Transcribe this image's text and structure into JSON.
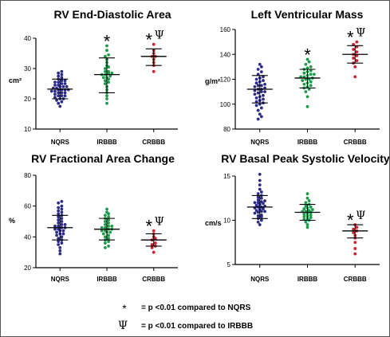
{
  "colors": {
    "NQRS": "#2b2c86",
    "IRBBB": "#1e9a4a",
    "CRBBB": "#d21f2b"
  },
  "chart_data": [
    {
      "type": "scatter",
      "title": "RV End-Diastolic Area",
      "ylabel": "cm²",
      "ylim": [
        10,
        40
      ],
      "yticks": [
        10,
        20,
        30,
        40
      ],
      "categories": [
        "NQRS",
        "IRBBB",
        "CRBBB"
      ],
      "series": [
        {
          "category": "NQRS",
          "mean": 23.2,
          "sd_low": 20.0,
          "sd_high": 26.5,
          "values": [
            17.5,
            18.5,
            19,
            19.5,
            20,
            20,
            20.5,
            21,
            21,
            21,
            21.5,
            22,
            22,
            22,
            22.5,
            22.5,
            23,
            23,
            23,
            23,
            23.5,
            23.5,
            24,
            24,
            24,
            24.5,
            24.5,
            25,
            25,
            25.5,
            25.5,
            26,
            26,
            26.5,
            27,
            27.5,
            28,
            28.5,
            29
          ]
        },
        {
          "category": "IRBBB",
          "mean": 28.0,
          "sd_low": 22.0,
          "sd_high": 33.5,
          "values": [
            18.5,
            20,
            21,
            22,
            23,
            24,
            25,
            25.5,
            26,
            26.5,
            27,
            27,
            27.5,
            28,
            28,
            28.5,
            28.5,
            29,
            29,
            30,
            30.5,
            31,
            32,
            33,
            34,
            34.5,
            36,
            37.5
          ]
        },
        {
          "category": "CRBBB",
          "mean": 34.0,
          "sd_low": 31.0,
          "sd_high": 36.5,
          "values": [
            29,
            31,
            32,
            33,
            34,
            34,
            35,
            36,
            38
          ]
        }
      ],
      "annotations": [
        {
          "category": "IRBBB",
          "symbols": "*"
        },
        {
          "category": "CRBBB",
          "symbols": "*Ψ"
        }
      ]
    },
    {
      "type": "scatter",
      "title": "Left Ventricular Mass",
      "ylabel": "g/m²",
      "ylim": [
        80,
        160
      ],
      "yticks": [
        80,
        100,
        120,
        140,
        160
      ],
      "categories": [
        "NQRS",
        "IRBBB",
        "CRBBB"
      ],
      "series": [
        {
          "category": "NQRS",
          "mean": 112,
          "sd_low": 101,
          "sd_high": 123,
          "values": [
            88,
            90,
            92,
            95,
            97,
            99,
            100,
            101,
            102,
            103,
            104,
            105,
            106,
            107,
            108,
            109,
            110,
            110,
            111,
            112,
            112,
            113,
            114,
            115,
            115,
            116,
            117,
            118,
            119,
            120,
            121,
            122,
            124,
            126,
            128,
            130,
            132
          ]
        },
        {
          "category": "IRBBB",
          "mean": 121,
          "sd_low": 113,
          "sd_high": 128,
          "values": [
            98,
            106,
            110,
            112,
            113,
            114,
            115,
            116,
            117,
            118,
            119,
            120,
            120,
            121,
            122,
            122,
            123,
            124,
            124,
            125,
            126,
            127,
            128,
            129,
            130,
            132,
            134,
            136
          ]
        },
        {
          "category": "CRBBB",
          "mean": 140,
          "sd_low": 133,
          "sd_high": 147,
          "values": [
            122,
            130,
            133,
            135,
            137,
            139,
            140,
            142,
            144,
            146,
            148,
            150
          ]
        }
      ],
      "annotations": [
        {
          "category": "IRBBB",
          "symbols": "*"
        },
        {
          "category": "CRBBB",
          "symbols": "*Ψ"
        }
      ]
    },
    {
      "type": "scatter",
      "title": "RV Fractional Area Change",
      "ylabel": "%",
      "ylim": [
        20,
        80
      ],
      "yticks": [
        20,
        40,
        60,
        80
      ],
      "categories": [
        "NQRS",
        "IRBBB",
        "CRBBB"
      ],
      "series": [
        {
          "category": "NQRS",
          "mean": 46,
          "sd_low": 38,
          "sd_high": 54,
          "values": [
            29,
            31,
            33,
            35,
            36,
            37,
            38,
            39,
            40,
            41,
            42,
            42,
            43,
            44,
            44,
            45,
            45,
            46,
            46,
            47,
            47,
            48,
            48,
            49,
            50,
            51,
            52,
            53,
            54,
            55,
            56,
            57,
            58,
            59,
            60,
            62,
            63
          ]
        },
        {
          "category": "IRBBB",
          "mean": 45,
          "sd_low": 38,
          "sd_high": 52,
          "values": [
            33,
            34,
            36,
            37,
            38,
            39,
            40,
            41,
            42,
            43,
            43,
            44,
            44,
            45,
            45,
            46,
            46,
            47,
            47,
            48,
            49,
            50,
            51,
            52,
            53,
            54,
            55,
            56,
            58
          ]
        },
        {
          "category": "CRBBB",
          "mean": 38,
          "sd_low": 34,
          "sd_high": 42,
          "values": [
            30,
            33,
            34,
            35,
            36,
            38,
            39,
            40,
            42,
            44
          ]
        }
      ],
      "annotations": [
        {
          "category": "CRBBB",
          "symbols": "*Ψ"
        }
      ]
    },
    {
      "type": "scatter",
      "title": "RV Basal  Peak  Systolic  Velocity",
      "ylabel": "cm/s",
      "ylim": [
        5,
        15
      ],
      "yticks": [
        5,
        10,
        15
      ],
      "categories": [
        "NQRS",
        "IRBBB",
        "CRBBB"
      ],
      "series": [
        {
          "category": "NQRS",
          "mean": 11.5,
          "sd_low": 10.2,
          "sd_high": 12.8,
          "values": [
            9.5,
            9.8,
            10,
            10.2,
            10.4,
            10.5,
            10.6,
            10.8,
            10.9,
            11,
            11,
            11.1,
            11.2,
            11.3,
            11.4,
            11.5,
            11.5,
            11.6,
            11.7,
            11.8,
            11.9,
            12,
            12,
            12.1,
            12.2,
            12.3,
            12.5,
            12.6,
            12.8,
            13,
            13.2,
            13.5,
            14,
            14.5,
            15.2
          ]
        },
        {
          "category": "IRBBB",
          "mean": 10.9,
          "sd_low": 10.0,
          "sd_high": 11.8,
          "values": [
            9.2,
            9.5,
            9.8,
            10,
            10.1,
            10.2,
            10.3,
            10.4,
            10.5,
            10.6,
            10.7,
            10.8,
            10.9,
            11,
            11,
            11.1,
            11.2,
            11.3,
            11.4,
            11.5,
            11.6,
            11.8,
            12,
            12.2,
            12.5,
            13
          ]
        },
        {
          "category": "CRBBB",
          "mean": 8.8,
          "sd_low": 8.0,
          "sd_high": 9.5,
          "values": [
            6.2,
            6.8,
            7.5,
            8.0,
            8.3,
            8.6,
            8.8,
            9.0,
            9.2,
            9.5
          ]
        }
      ],
      "annotations": [
        {
          "category": "CRBBB",
          "symbols": "*Ψ"
        }
      ]
    }
  ],
  "legend": {
    "asterisk": {
      "symbol": "*",
      "text": "= p <0.01 compared to NQRS"
    },
    "psi": {
      "symbol": "Ψ",
      "text": "= p <0.01 compared to IRBBB"
    }
  }
}
